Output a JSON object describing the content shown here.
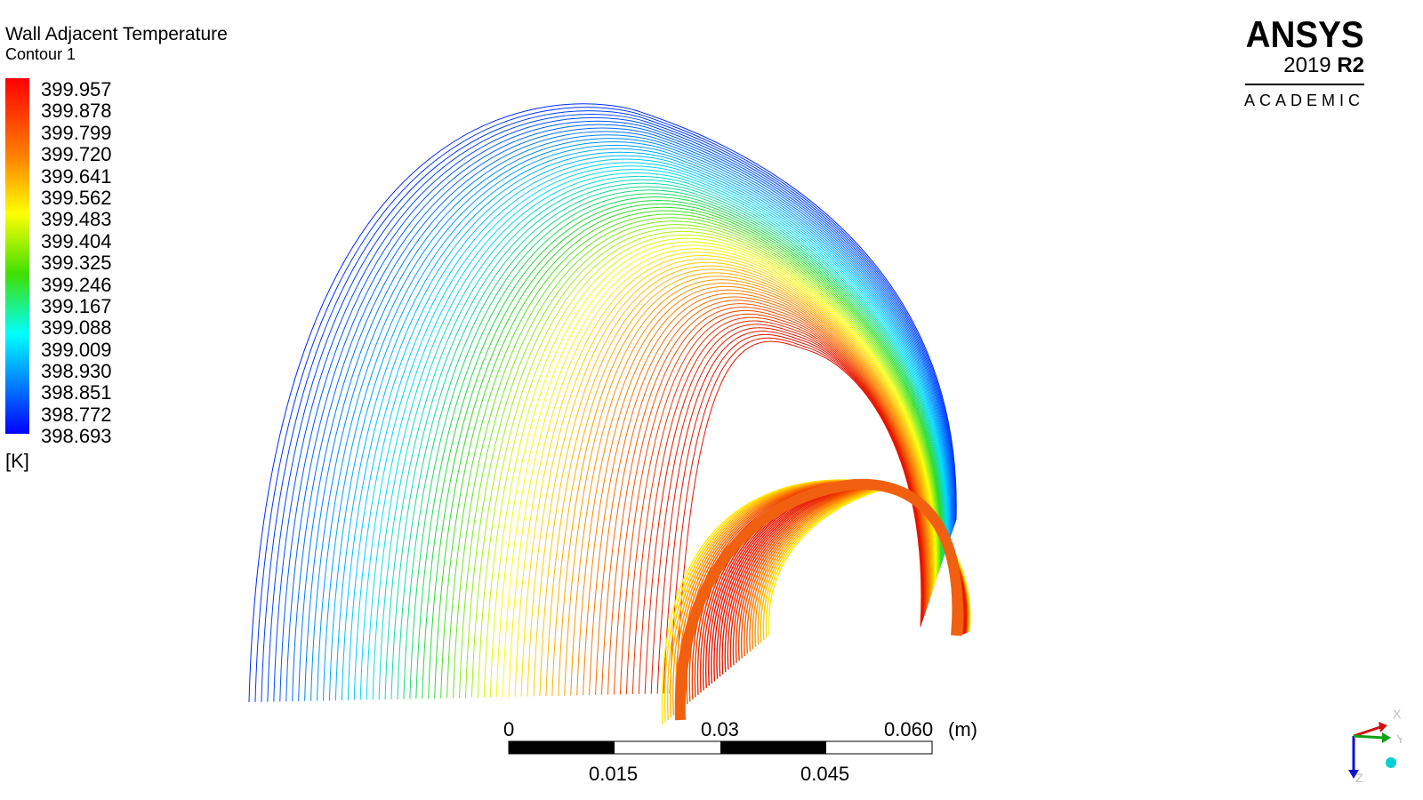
{
  "legend": {
    "title": "Wall Adjacent Temperature",
    "subtitle": "Contour 1",
    "values": [
      "399.957",
      "399.878",
      "399.799",
      "399.720",
      "399.641",
      "399.562",
      "399.483",
      "399.404",
      "399.325",
      "399.246",
      "399.167",
      "399.088",
      "399.009",
      "398.930",
      "398.851",
      "398.772",
      "398.693"
    ],
    "unit": "[K]"
  },
  "logo": {
    "name": "ANSYS",
    "version": "2019",
    "release": "R2",
    "edition": "ACADEMIC"
  },
  "scale_bar": {
    "top_labels": [
      "0",
      "0.03",
      "0.060"
    ],
    "bottom_labels": [
      "0.015",
      "0.045"
    ],
    "unit": "(m)"
  },
  "triad": {
    "x_label": "X",
    "y_label": "Y",
    "z_label": "Z"
  },
  "colors": {
    "high": "#ff0000",
    "low": "#0000ff",
    "x_axis": "#d01010",
    "y_axis": "#10a010",
    "z_axis": "#1010d0"
  }
}
